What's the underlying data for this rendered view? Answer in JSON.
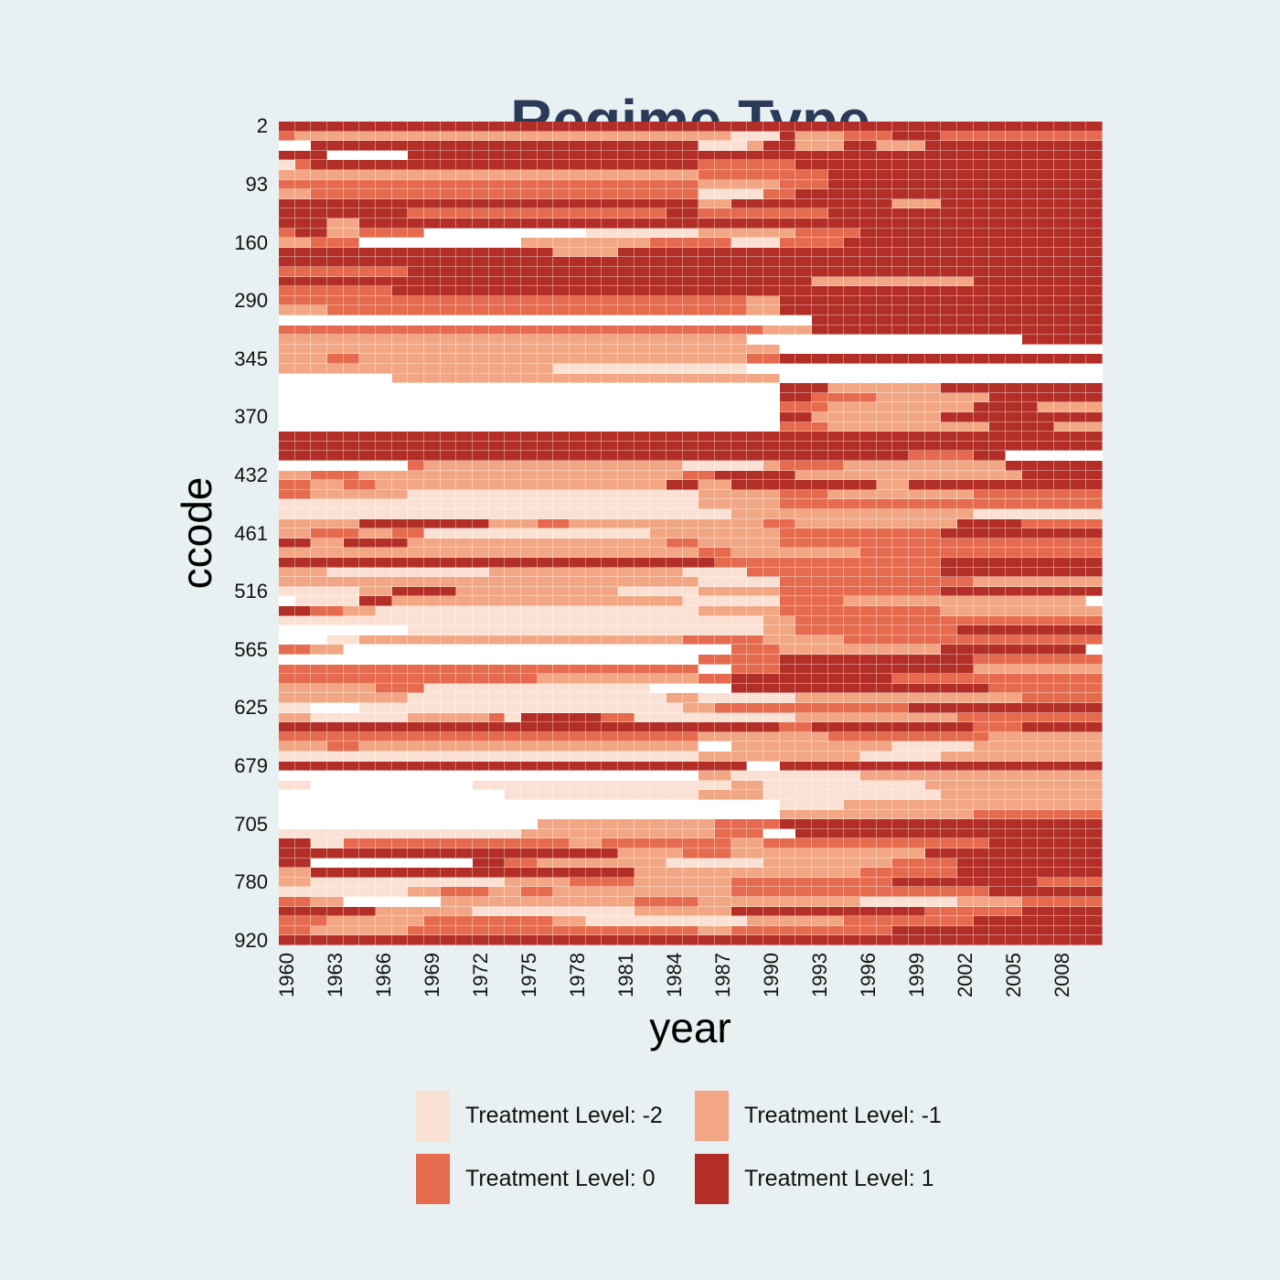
{
  "page": {
    "background": "#e9f0f2"
  },
  "title": {
    "text": "Regime Type",
    "color": "#2b3a59"
  },
  "axes": {
    "x_label": "year",
    "y_label": "ccode",
    "tick_color": "#111111"
  },
  "legend": {
    "items": [
      {
        "label": "Treatment Level: -2",
        "level": -2,
        "color": "#fbe1d3"
      },
      {
        "label": "Treatment Level: -1",
        "level": -1,
        "color": "#f3a683"
      },
      {
        "label": "Treatment Level: 0",
        "level": 0,
        "color": "#e66a4d"
      },
      {
        "label": "Treatment Level: 1",
        "level": 1,
        "color": "#b22e26"
      }
    ]
  },
  "chart_data": {
    "type": "heatmap",
    "title": "Regime Type",
    "xlabel": "year",
    "ylabel": "ccode",
    "x_range": {
      "start_year": 1960,
      "end_year": 2010,
      "n_cols": 51
    },
    "x_tick_years": [
      1960,
      1963,
      1966,
      1969,
      1972,
      1975,
      1978,
      1981,
      1984,
      1987,
      1990,
      1993,
      1996,
      1999,
      2002,
      2005,
      2008
    ],
    "y_tick_labels": [
      "2",
      "93",
      "160",
      "290",
      "345",
      "370",
      "432",
      "461",
      "516",
      "565",
      "625",
      "679",
      "705",
      "780",
      "920"
    ],
    "y_tick_rows": [
      1,
      7,
      13,
      19,
      25,
      31,
      37,
      43,
      49,
      55,
      61,
      67,
      73,
      79,
      85
    ],
    "n_rows": 85,
    "level_codes": {
      ".": null,
      "1": -2,
      "2": -1,
      "3": 0,
      "4": 1
    },
    "palette": {
      "1": "#fbe1d3",
      "2": "#f3a683",
      "3": "#e66a4d",
      "4": "#b22e26"
    },
    "missing_color": "#ffffff",
    "grid_line_color": "rgba(255,255,255,0.38)",
    "rows": [
      "444444444444444444444444444444444444444444444444444",
      "3222222222222222222222222222111422233344433333333333",
      "..4444444444444444444444441112442224422244444444444",
      "444.....4444444444444444444444444444444444444444444",
      "134444444444444444444444443333334444444444444444444",
      "222222222222222222222222223333333344444444444444444",
      "333333333333333333333333332222233344444444444444444",
      "223333333333333333333333331111334444444444444444444",
      "444444444444444444444444442244444444442224444444444",
      "444444443333333333333333443333333344444444444444444",
      "444224444444444444444444444444444444444444444444444",
      "344223333..........11111112222223333444444444444444",
      "22333..........222222223333311133334444444444444444",
      "444444444444444442222444444444444444444444444444444",
      "444444444444444444444444444444444444444444444444444",
      "333333334444444444444444444444444444444444444444444",
      "444444444444444444444444444444444222222222244444444",
      "333333344444444444444444444444444444444444444444444",
      "333333333333333333333333333332244444444444444444444",
      "222333333333333333333333333332244444444444444444444",
      ".................................444444444444444444",
      "333333333333333333333333333333222444444444444444444",
      "22222222222222222222222222222.................44444",
      "2222222222222222222222222222222....................",
      "222332222222222222222222222223344444444444444444444",
      "22222222222222222111111111111......................",
      ".......222222222222222222222222....................",
      "...............................44422222224444444444",
      "...............................44333322222224444444",
      "...............................33322222222244442222",
      "...............................44222222224444444444",
      "...............................33322222222224444222",
      "444444444444444444444444444444444444444444444444444",
      "444444444444444444444444444444444444444444444444444",
      "444444444444444444444444444444444444444333344",
      "........32222222222222222111112333322222222224444444",
      "223332222222222222222222233444442222222222222244444",
      "332233222222222222222222442244444444422444444444444",
      "332222221111111111111111112222233322222222233333333",
      "111111111111111111111111112222233333333333333333333",
      "111111111111111111111111111122222222222222211111111",
      "222224444444422233222222222222332222222222444433333",
      "223332233111111111111112222222233333333334444444444",
      "442244442222222222222222332222233333333333333333333",
      "222222222222222222222222223322222222333333333333333",
      "444444444444444444444444444333333333333334444444444",
      "222111111111122222222222211113333333333334444444444",
      "222222222222222222222222221111133333333333322222222",
      "111112244442222222222111112222233333333334444444444",
      ".1111442222222222222222221111113333222222222222222",
      "443322111111111111111111112222233333333332222222222",
      "111111111111111111111111111111223333333333333333333",
      "........１1111111111111111111111223333333333444444444",
      "...1122222222222222222222333332222233333333333333333",
      "3322........................3332222222222444444444",
      "..........................33333444444444444333333333",
      "33333333333333333333333333..333444444444444222222222",
      "333333333333333322222222223344444444443333333333333",
      "22222233311111111111111.....444444444444444433333333",
      "222222221111111111111111221111112222222222222233333",
      "11...111111111111111111112233333333333344444444444 4",
      "221111112222231444443311111111112222222222333333333 3",
      "444444444444444444444444444444433444444444433344444",
      "333333333333333333333333332222222233333333332222222",
      "22233222222222222222222222..22222222221111122222222",
      "111111111111111111111111112222222222111112222222222",
      "44444444444444444444444444444..44444444444444444444",
      "..........................221111111122222222222222 2",
      "11..........111111111111111122111111111122222222222",
      "..............111111111111222211111111111222222222 2",
      "...............................11112222222222222222",
      "...............................22222222222233333333",
      "................22222222222333344444444444444444444 4",
      "111111111111111222222222222333..4444444444444444444",
      "441133333333333333223333333322333333333333334444444",
      "444444444444444444444222233322222222222244444444444",
      "44..........443322222222111111222222223333444444444",
      "224444444444444444444422222222222222333333444444444",
      "221111111111112222333322222233333333334444444443333",
      "111111112233322332222222222233333333333333334444444 4",
      "3322......222222222222333322222222221111112222333 33",
      "444444222222111111111122222244444444444433333344444",
      "333222222333333332211111111112222223333333344444444",
      "332222223333333333333333332233333333334444444444444",
      "444444444444444444444444444444444444444444444444444"
    ]
  }
}
